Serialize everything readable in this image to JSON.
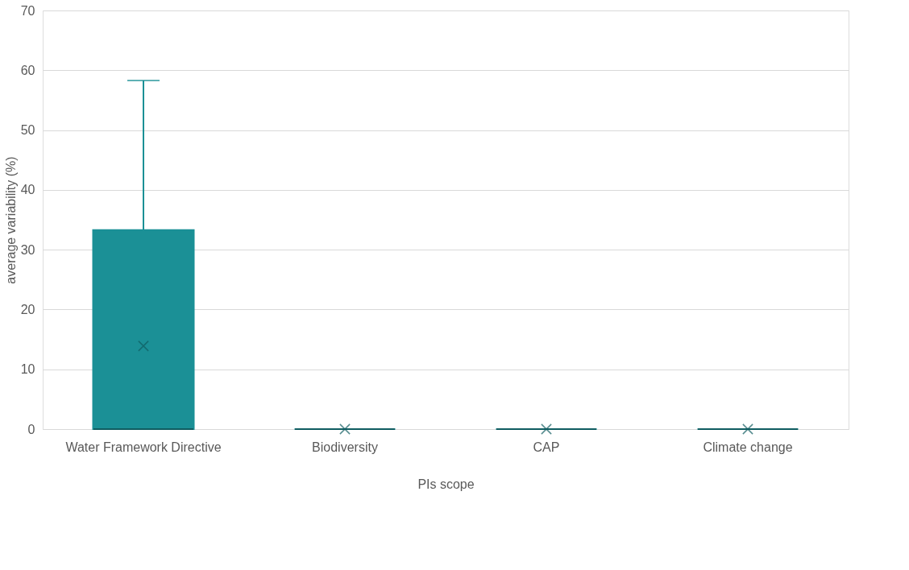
{
  "chart_data": {
    "type": "box",
    "xlabel": "PIs scope",
    "ylabel": "average variability (%)",
    "categories": [
      "Water Framework Directive",
      "Biodiversity",
      "CAP",
      "Climate change"
    ],
    "boxes": [
      {
        "low": 0,
        "q1": 0,
        "median": 0,
        "q3": 33.3,
        "high": 58.3,
        "mean": 13.9
      },
      {
        "low": 0,
        "q1": 0,
        "median": 0,
        "q3": 0,
        "high": 0,
        "mean": 0
      },
      {
        "low": 0,
        "q1": 0,
        "median": 0,
        "q3": 0,
        "high": 0,
        "mean": 0
      },
      {
        "low": 0,
        "q1": 0,
        "median": 0,
        "q3": 0,
        "high": 0,
        "mean": 0
      }
    ],
    "color": "#1b9096",
    "ylim": [
      0,
      70
    ],
    "yticks": [
      0,
      10,
      20,
      30,
      40,
      50,
      60,
      70
    ],
    "grid": "y"
  }
}
